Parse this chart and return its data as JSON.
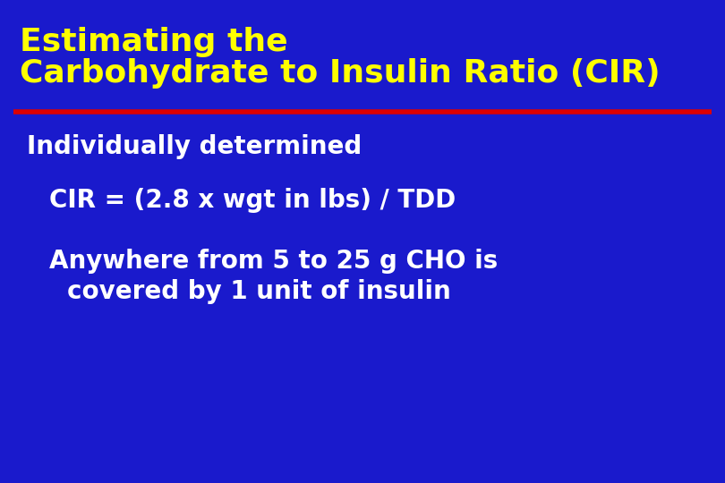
{
  "background_color": "#1a1acc",
  "title_line1": "Estimating the",
  "title_line2": "Carbohydrate to Insulin Ratio (CIR)",
  "title_color": "#ffff00",
  "title_fontsize": 26,
  "divider_color": "#dd0000",
  "divider_linewidth": 4,
  "bullet1": "Individually determined",
  "bullet1_color": "#ffffff",
  "bullet1_fontsize": 20,
  "bullet2": "CIR = (2.8 x wgt in lbs) / TDD",
  "bullet2_color": "#ffffff",
  "bullet2_fontsize": 20,
  "bullet3_line1": "Anywhere from 5 to 25 g CHO is",
  "bullet3_line2": "  covered by 1 unit of insulin",
  "bullet3_color": "#ffffff",
  "bullet3_fontsize": 20
}
